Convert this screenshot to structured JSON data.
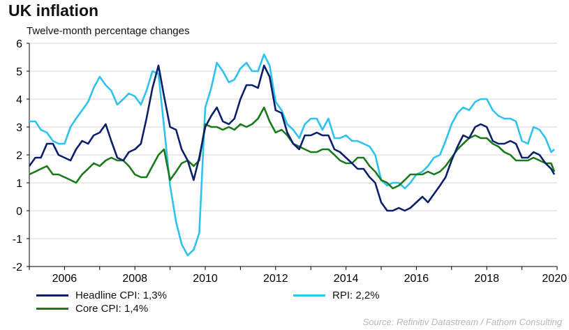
{
  "title": "UK inflation",
  "subtitle": "Twelve-month percentage changes",
  "source": "Source: Refinitiv Datastream / Fathom Consulting",
  "legend": [
    {
      "label": "Headline CPI: 1,3%",
      "color": "#0b1f6b"
    },
    {
      "label": "RPI: 2,2%",
      "color": "#2ec3ee"
    },
    {
      "label": "Core CPI: 1,4%",
      "color": "#1a7a1a"
    }
  ],
  "chart_data": {
    "type": "line",
    "title": "UK inflation",
    "subtitle": "Twelve-month percentage changes",
    "xlabel": "",
    "ylabel": "",
    "xlim": [
      2005.0,
      2020.0
    ],
    "ylim": [
      -2,
      6
    ],
    "yticks": [
      -2,
      -1,
      0,
      1,
      2,
      3,
      4,
      5,
      6
    ],
    "xticks": [
      2006,
      2008,
      2010,
      2012,
      2014,
      2016,
      2018,
      2020
    ],
    "grid": "horizontal",
    "legend_position": "bottom",
    "series": [
      {
        "name": "Headline CPI: 1,3%",
        "color": "#0b1f6b",
        "x": [
          2005.0,
          2005.17,
          2005.33,
          2005.5,
          2005.67,
          2005.83,
          2006.0,
          2006.17,
          2006.33,
          2006.5,
          2006.67,
          2006.83,
          2007.0,
          2007.17,
          2007.33,
          2007.5,
          2007.67,
          2007.83,
          2008.0,
          2008.17,
          2008.33,
          2008.5,
          2008.67,
          2008.83,
          2009.0,
          2009.17,
          2009.33,
          2009.5,
          2009.67,
          2009.83,
          2010.0,
          2010.17,
          2010.33,
          2010.5,
          2010.67,
          2010.83,
          2011.0,
          2011.17,
          2011.33,
          2011.5,
          2011.67,
          2011.83,
          2012.0,
          2012.17,
          2012.33,
          2012.5,
          2012.67,
          2012.83,
          2013.0,
          2013.17,
          2013.33,
          2013.5,
          2013.67,
          2013.83,
          2014.0,
          2014.17,
          2014.33,
          2014.5,
          2014.67,
          2014.83,
          2015.0,
          2015.17,
          2015.33,
          2015.5,
          2015.67,
          2015.83,
          2016.0,
          2016.17,
          2016.33,
          2016.5,
          2016.67,
          2016.83,
          2017.0,
          2017.17,
          2017.33,
          2017.5,
          2017.67,
          2017.83,
          2018.0,
          2018.17,
          2018.33,
          2018.5,
          2018.67,
          2018.83,
          2019.0,
          2019.17,
          2019.33,
          2019.5,
          2019.67,
          2019.83,
          2019.92
        ],
        "values": [
          1.6,
          1.9,
          1.9,
          2.4,
          2.4,
          2.0,
          1.9,
          1.8,
          2.2,
          2.5,
          2.4,
          2.7,
          2.8,
          3.1,
          2.5,
          1.9,
          1.8,
          2.1,
          2.2,
          2.4,
          3.3,
          4.4,
          5.2,
          4.1,
          3.0,
          2.9,
          2.2,
          1.8,
          1.1,
          1.9,
          3.0,
          3.4,
          3.7,
          3.2,
          3.1,
          3.3,
          4.0,
          4.5,
          4.5,
          4.4,
          5.2,
          4.8,
          3.6,
          3.5,
          2.8,
          2.4,
          2.2,
          2.7,
          2.7,
          2.8,
          2.7,
          2.7,
          2.2,
          2.1,
          1.9,
          1.7,
          1.5,
          1.5,
          1.2,
          1.0,
          0.3,
          0.0,
          0.0,
          0.1,
          0.0,
          0.1,
          0.3,
          0.5,
          0.3,
          0.6,
          0.9,
          1.2,
          1.8,
          2.3,
          2.7,
          2.6,
          3.0,
          3.1,
          3.0,
          2.5,
          2.4,
          2.4,
          2.5,
          2.4,
          1.9,
          1.9,
          2.1,
          2.0,
          1.7,
          1.5,
          1.3
        ]
      },
      {
        "name": "RPI: 2,2%",
        "color": "#2ec3ee",
        "x": [
          2005.0,
          2005.17,
          2005.33,
          2005.5,
          2005.67,
          2005.83,
          2006.0,
          2006.17,
          2006.33,
          2006.5,
          2006.67,
          2006.83,
          2007.0,
          2007.17,
          2007.33,
          2007.5,
          2007.67,
          2007.83,
          2008.0,
          2008.17,
          2008.33,
          2008.5,
          2008.67,
          2008.83,
          2009.0,
          2009.17,
          2009.33,
          2009.5,
          2009.67,
          2009.83,
          2010.0,
          2010.17,
          2010.33,
          2010.5,
          2010.67,
          2010.83,
          2011.0,
          2011.17,
          2011.33,
          2011.5,
          2011.67,
          2011.83,
          2012.0,
          2012.17,
          2012.33,
          2012.5,
          2012.67,
          2012.83,
          2013.0,
          2013.17,
          2013.33,
          2013.5,
          2013.67,
          2013.83,
          2014.0,
          2014.17,
          2014.33,
          2014.5,
          2014.67,
          2014.83,
          2015.0,
          2015.17,
          2015.33,
          2015.5,
          2015.67,
          2015.83,
          2016.0,
          2016.17,
          2016.33,
          2016.5,
          2016.67,
          2016.83,
          2017.0,
          2017.17,
          2017.33,
          2017.5,
          2017.67,
          2017.83,
          2018.0,
          2018.17,
          2018.33,
          2018.5,
          2018.67,
          2018.83,
          2019.0,
          2019.17,
          2019.33,
          2019.5,
          2019.67,
          2019.83,
          2019.92
        ],
        "values": [
          3.2,
          3.2,
          2.9,
          2.8,
          2.5,
          2.4,
          2.4,
          3.0,
          3.3,
          3.6,
          3.9,
          4.4,
          4.8,
          4.5,
          4.3,
          3.8,
          4.0,
          4.2,
          4.1,
          3.8,
          4.3,
          5.0,
          4.9,
          3.0,
          0.9,
          -0.4,
          -1.2,
          -1.6,
          -1.4,
          -0.8,
          3.7,
          4.4,
          5.3,
          5.0,
          4.6,
          4.7,
          5.1,
          5.3,
          5.0,
          5.0,
          5.6,
          5.2,
          3.9,
          3.6,
          3.1,
          2.9,
          2.6,
          3.1,
          3.3,
          3.3,
          2.9,
          3.3,
          2.6,
          2.6,
          2.7,
          2.5,
          2.5,
          2.4,
          2.3,
          2.0,
          1.1,
          0.9,
          1.0,
          1.0,
          0.8,
          1.0,
          1.3,
          1.4,
          1.6,
          1.9,
          2.0,
          2.5,
          3.1,
          3.5,
          3.7,
          3.6,
          3.9,
          4.0,
          4.0,
          3.6,
          3.4,
          3.3,
          3.3,
          3.2,
          2.5,
          2.4,
          3.0,
          2.9,
          2.6,
          2.1,
          2.2
        ]
      },
      {
        "name": "Core CPI: 1,4%",
        "color": "#1a7a1a",
        "x": [
          2005.0,
          2005.17,
          2005.33,
          2005.5,
          2005.67,
          2005.83,
          2006.0,
          2006.17,
          2006.33,
          2006.5,
          2006.67,
          2006.83,
          2007.0,
          2007.17,
          2007.33,
          2007.5,
          2007.67,
          2007.83,
          2008.0,
          2008.17,
          2008.33,
          2008.5,
          2008.67,
          2008.83,
          2009.0,
          2009.17,
          2009.33,
          2009.5,
          2009.67,
          2009.83,
          2010.0,
          2010.17,
          2010.33,
          2010.5,
          2010.67,
          2010.83,
          2011.0,
          2011.17,
          2011.33,
          2011.5,
          2011.67,
          2011.83,
          2012.0,
          2012.17,
          2012.33,
          2012.5,
          2012.67,
          2012.83,
          2013.0,
          2013.17,
          2013.33,
          2013.5,
          2013.67,
          2013.83,
          2014.0,
          2014.17,
          2014.33,
          2014.5,
          2014.67,
          2014.83,
          2015.0,
          2015.17,
          2015.33,
          2015.5,
          2015.67,
          2015.83,
          2016.0,
          2016.17,
          2016.33,
          2016.5,
          2016.67,
          2016.83,
          2017.0,
          2017.17,
          2017.33,
          2017.5,
          2017.67,
          2017.83,
          2018.0,
          2018.17,
          2018.33,
          2018.5,
          2018.67,
          2018.83,
          2019.0,
          2019.17,
          2019.33,
          2019.5,
          2019.67,
          2019.83,
          2019.92
        ],
        "values": [
          1.3,
          1.4,
          1.5,
          1.6,
          1.3,
          1.3,
          1.2,
          1.1,
          1.0,
          1.3,
          1.5,
          1.7,
          1.6,
          1.8,
          1.9,
          1.8,
          1.8,
          1.6,
          1.3,
          1.2,
          1.2,
          1.6,
          2.0,
          2.2,
          1.1,
          1.4,
          1.7,
          1.8,
          1.6,
          1.8,
          3.1,
          3.0,
          3.0,
          2.9,
          3.0,
          2.9,
          3.1,
          3.0,
          3.1,
          3.3,
          3.7,
          3.2,
          2.8,
          2.9,
          2.7,
          2.4,
          2.3,
          2.2,
          2.1,
          2.1,
          2.2,
          2.2,
          2.0,
          1.8,
          1.7,
          1.7,
          1.9,
          1.9,
          1.6,
          1.4,
          1.1,
          1.0,
          0.8,
          0.9,
          1.1,
          1.3,
          1.3,
          1.3,
          1.4,
          1.3,
          1.4,
          1.6,
          1.9,
          2.2,
          2.4,
          2.6,
          2.7,
          2.6,
          2.6,
          2.4,
          2.3,
          2.1,
          2.0,
          1.8,
          1.8,
          1.8,
          1.9,
          1.8,
          1.7,
          1.7,
          1.4
        ]
      }
    ]
  }
}
